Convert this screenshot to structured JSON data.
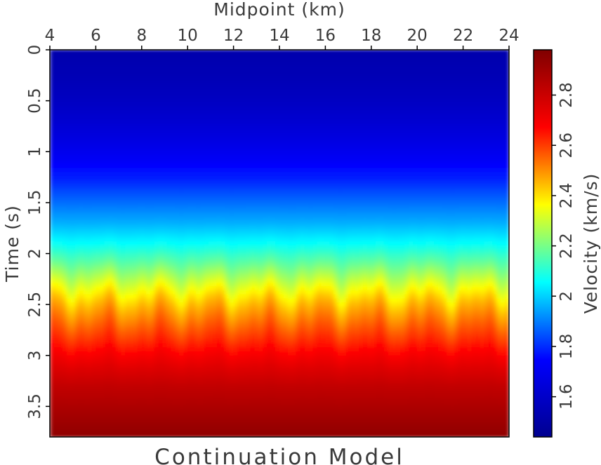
{
  "chart_data": {
    "type": "heatmap",
    "title": "Continuation Model",
    "xlabel": "Midpoint (km)",
    "ylabel": "Time (s)",
    "colorbar_label": "Velocity (km/s)",
    "xlim": [
      4,
      24
    ],
    "ylim": [
      0,
      3.8
    ],
    "x_axis_position": "top",
    "y_inverted": true,
    "xticks": [
      4,
      6,
      8,
      10,
      12,
      14,
      16,
      18,
      20,
      22,
      24
    ],
    "yticks": [
      0,
      0.5,
      1,
      1.5,
      2,
      2.5,
      3,
      3.5
    ],
    "ytick_labels": [
      "0",
      "0.5",
      "1",
      "1.5",
      "2",
      "2.5",
      "3",
      "3.5"
    ],
    "colorbar_range": [
      1.44,
      2.98
    ],
    "colorbar_ticks": [
      1.6,
      1.8,
      2,
      2.2,
      2.4,
      2.6,
      2.8
    ],
    "colorbar_tick_labels": [
      "1.6",
      "1.8",
      "2",
      "2.2",
      "2.4",
      "2.6",
      "2.8"
    ],
    "colormap": [
      "#00008f",
      "#0000ff",
      "#00ffff",
      "#ffff00",
      "#ff0000",
      "#800000"
    ],
    "velocity_profile": {
      "time_s": [
        0,
        0.3,
        0.5,
        0.7,
        0.9,
        1.1,
        1.3,
        1.5,
        1.7,
        1.9,
        2.1,
        2.3,
        2.5,
        2.7,
        2.9,
        3.1,
        3.3,
        3.5,
        3.7,
        3.8
      ],
      "velocity_kms": [
        1.52,
        1.55,
        1.58,
        1.62,
        1.67,
        1.73,
        1.8,
        1.88,
        1.96,
        2.06,
        2.18,
        2.32,
        2.45,
        2.55,
        2.64,
        2.74,
        2.82,
        2.87,
        2.92,
        2.94
      ]
    }
  }
}
